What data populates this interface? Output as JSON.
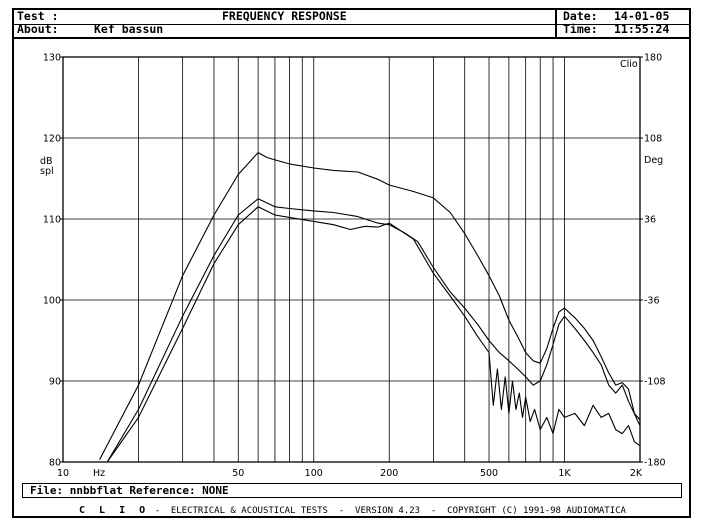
{
  "header": {
    "test_label": "Test :",
    "about_label": "About:",
    "about_value": "Kef bassun",
    "title": "FREQUENCY RESPONSE",
    "date_label": "Date:",
    "date_value": "14-01-05",
    "time_label": "Time:",
    "time_value": "11:55:24"
  },
  "file_line": "File: nnbbflat Reference: NONE",
  "footer": {
    "brand": "C L I O",
    "text": " -  ELECTRICAL & ACOUSTICAL TESTS  -  VERSION 4.23  -  COPYRIGHT (C) 1991-98 AUDIOMATICA"
  },
  "chart_data": {
    "type": "line",
    "title": "FREQUENCY RESPONSE",
    "xscale": "log",
    "xlim": [
      10,
      2000
    ],
    "ylim": [
      80,
      130
    ],
    "y2lim": [
      -180,
      180
    ],
    "x_ticks": [
      {
        "value": 10,
        "label": "10"
      },
      {
        "value": 50,
        "label": "50"
      },
      {
        "value": 100,
        "label": "100"
      },
      {
        "value": 200,
        "label": "200"
      },
      {
        "value": 500,
        "label": "500"
      },
      {
        "value": 1000,
        "label": "1K"
      },
      {
        "value": 2000,
        "label": "2K"
      }
    ],
    "x_unit": "Hz",
    "y_ticks": [
      80,
      90,
      100,
      110,
      120,
      130
    ],
    "ylabel": "dB spl",
    "ylabel_lines": [
      "dB",
      "spl"
    ],
    "y2_ticks": [
      -180,
      -108,
      -36,
      36,
      108,
      180
    ],
    "y2label": "Deg",
    "corner_label": "Clio",
    "grid": true,
    "series": [
      {
        "x": [
          14,
          20,
          30,
          40,
          50,
          60,
          65,
          70,
          80,
          100,
          120,
          150,
          180,
          200,
          250,
          300,
          350,
          400,
          450,
          500,
          550,
          600,
          650,
          700,
          750,
          800,
          850,
          900,
          950,
          1000,
          1100,
          1200,
          1300,
          1400,
          1500,
          1600,
          1700,
          1800,
          1900,
          2000
        ],
        "y": [
          80.3,
          89.5,
          103,
          110.5,
          115.5,
          118.2,
          117.6,
          117.3,
          116.8,
          116.3,
          116,
          115.8,
          114.9,
          114.2,
          113.4,
          112.6,
          110.8,
          108.2,
          105.5,
          103,
          100.5,
          97.5,
          95.5,
          93.5,
          92.5,
          92.2,
          94,
          96.5,
          98.5,
          99,
          97.8,
          96.5,
          95,
          93,
          91,
          89.5,
          89.8,
          89,
          86,
          85.2
        ]
      },
      {
        "x": [
          15,
          20,
          30,
          40,
          50,
          60,
          70,
          80,
          100,
          120,
          150,
          180,
          200,
          230,
          260,
          300,
          350,
          400,
          450,
          500,
          550,
          600,
          650,
          700,
          750,
          800,
          850,
          900,
          950,
          1000,
          1100,
          1200,
          1300,
          1400,
          1500,
          1600,
          1700,
          1800,
          2000
        ],
        "y": [
          80,
          86.5,
          98,
          105.5,
          110.5,
          112.5,
          111.5,
          111.3,
          111,
          110.8,
          110.3,
          109.5,
          109.3,
          108.3,
          107.2,
          104,
          101,
          99,
          97,
          95,
          93.5,
          92.5,
          91.5,
          90.5,
          89.5,
          90,
          92,
          94.5,
          97,
          98,
          96.5,
          95,
          93.5,
          92,
          89.5,
          88.5,
          89.5,
          87.5,
          84.5
        ]
      },
      {
        "x": [
          15,
          20,
          30,
          40,
          50,
          60,
          70,
          80,
          100,
          120,
          140,
          160,
          180,
          200,
          250,
          300,
          350,
          400,
          450,
          500,
          520,
          540,
          560,
          580,
          600,
          620,
          640,
          660,
          680,
          700,
          730,
          760,
          800,
          850,
          900,
          950,
          1000,
          1100,
          1200,
          1300,
          1400,
          1500,
          1600,
          1700,
          1800,
          1900,
          2000
        ],
        "y": [
          79.5,
          85.5,
          96.5,
          104.5,
          109.3,
          111.5,
          110.5,
          110.2,
          109.7,
          109.3,
          108.7,
          109.1,
          109,
          109.5,
          107.5,
          103.3,
          100.5,
          98,
          95.5,
          93.5,
          87,
          91.5,
          86.5,
          90.5,
          86,
          90,
          86.5,
          88.5,
          85.5,
          88,
          85,
          86.5,
          84,
          85.5,
          83.5,
          86.5,
          85.5,
          86,
          84.5,
          87,
          85.5,
          86,
          84,
          83.5,
          84.5,
          82.5,
          82
        ]
      }
    ]
  }
}
